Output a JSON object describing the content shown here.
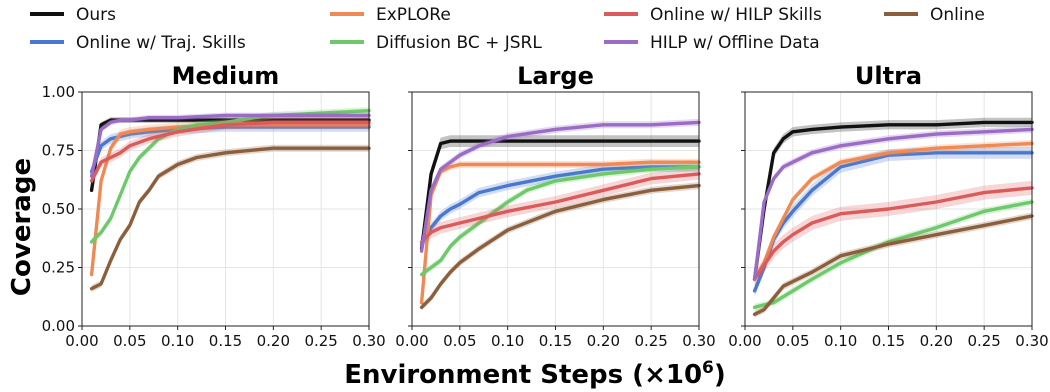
{
  "figure": {
    "xlabel": "Environment Steps (×10",
    "xlabel_sup": "6",
    "xlabel_close": ")",
    "ylabel": "Coverage"
  },
  "legend": [
    {
      "name": "Ours",
      "color": "#111111"
    },
    {
      "name": "Online w/ Traj. Skills",
      "color": "#4a78d0"
    },
    {
      "name": "ExPLORe",
      "color": "#ef8a54"
    },
    {
      "name": "Diffusion BC + JSRL",
      "color": "#6dc96a"
    },
    {
      "name": "Online w/ HILP Skills",
      "color": "#db5a5a"
    },
    {
      "name": "HILP w/ Offline Data",
      "color": "#9a6cc6"
    },
    {
      "name": "Online",
      "color": "#8b5e3c"
    }
  ],
  "chart_data": [
    {
      "type": "line",
      "title": "Medium",
      "xlim": [
        0.0,
        0.3
      ],
      "ylim": [
        0.0,
        1.0
      ],
      "xticks": [
        "0.00",
        "0.05",
        "0.10",
        "0.15",
        "0.20",
        "0.25",
        "0.30"
      ],
      "yticks": [
        "0.00",
        "0.25",
        "0.50",
        "0.75",
        "1.00"
      ],
      "grid": true,
      "series": [
        {
          "name": "Ours",
          "color": "#111111",
          "band": 0.012,
          "x": [
            0.01,
            0.02,
            0.03,
            0.04,
            0.05,
            0.07,
            0.1,
            0.15,
            0.2,
            0.25,
            0.3
          ],
          "y": [
            0.58,
            0.86,
            0.88,
            0.88,
            0.88,
            0.88,
            0.88,
            0.88,
            0.88,
            0.88,
            0.88
          ]
        },
        {
          "name": "Online w/ Traj. Skills",
          "color": "#4a78d0",
          "band": 0.02,
          "x": [
            0.01,
            0.02,
            0.03,
            0.04,
            0.05,
            0.07,
            0.1,
            0.15,
            0.2,
            0.25,
            0.3
          ],
          "y": [
            0.66,
            0.77,
            0.8,
            0.81,
            0.82,
            0.83,
            0.84,
            0.85,
            0.85,
            0.85,
            0.85
          ]
        },
        {
          "name": "ExPLORe",
          "color": "#ef8a54",
          "band": 0.02,
          "x": [
            0.01,
            0.02,
            0.03,
            0.04,
            0.05,
            0.07,
            0.1,
            0.15,
            0.2,
            0.25,
            0.3
          ],
          "y": [
            0.22,
            0.62,
            0.76,
            0.82,
            0.83,
            0.84,
            0.85,
            0.86,
            0.86,
            0.86,
            0.86
          ]
        },
        {
          "name": "Diffusion BC + JSRL",
          "color": "#6dc96a",
          "band": 0.015,
          "x": [
            0.01,
            0.02,
            0.03,
            0.04,
            0.05,
            0.06,
            0.07,
            0.08,
            0.1,
            0.12,
            0.15,
            0.18,
            0.2,
            0.25,
            0.3
          ],
          "y": [
            0.36,
            0.4,
            0.46,
            0.56,
            0.66,
            0.72,
            0.76,
            0.8,
            0.84,
            0.86,
            0.87,
            0.89,
            0.9,
            0.91,
            0.92
          ]
        },
        {
          "name": "Online w/ HILP Skills",
          "color": "#db5a5a",
          "band": 0.02,
          "x": [
            0.01,
            0.02,
            0.03,
            0.04,
            0.05,
            0.07,
            0.1,
            0.15,
            0.2,
            0.25,
            0.3
          ],
          "y": [
            0.62,
            0.7,
            0.72,
            0.74,
            0.77,
            0.8,
            0.83,
            0.86,
            0.87,
            0.87,
            0.87
          ]
        },
        {
          "name": "HILP w/ Offline Data",
          "color": "#9a6cc6",
          "band": 0.012,
          "x": [
            0.01,
            0.02,
            0.03,
            0.04,
            0.05,
            0.07,
            0.1,
            0.15,
            0.2,
            0.25,
            0.3
          ],
          "y": [
            0.64,
            0.84,
            0.87,
            0.88,
            0.88,
            0.89,
            0.89,
            0.9,
            0.9,
            0.9,
            0.9
          ]
        },
        {
          "name": "Online",
          "color": "#8b5e3c",
          "band": 0.015,
          "x": [
            0.01,
            0.02,
            0.03,
            0.04,
            0.05,
            0.06,
            0.07,
            0.08,
            0.1,
            0.12,
            0.15,
            0.2,
            0.25,
            0.3
          ],
          "y": [
            0.16,
            0.18,
            0.28,
            0.37,
            0.43,
            0.53,
            0.58,
            0.64,
            0.69,
            0.72,
            0.74,
            0.76,
            0.76,
            0.76
          ]
        }
      ]
    },
    {
      "type": "line",
      "title": "Large",
      "xlim": [
        0.0,
        0.3
      ],
      "ylim": [
        0.0,
        1.0
      ],
      "xticks": [
        "0.00",
        "0.05",
        "0.10",
        "0.15",
        "0.20",
        "0.25",
        "0.30"
      ],
      "yticks": [
        "0.00",
        "0.25",
        "0.50",
        "0.75",
        "1.00"
      ],
      "grid": true,
      "series": [
        {
          "name": "Ours",
          "color": "#111111",
          "band": 0.025,
          "x": [
            0.01,
            0.02,
            0.03,
            0.04,
            0.05,
            0.07,
            0.1,
            0.15,
            0.2,
            0.25,
            0.3
          ],
          "y": [
            0.33,
            0.65,
            0.78,
            0.79,
            0.79,
            0.79,
            0.79,
            0.79,
            0.79,
            0.79,
            0.79
          ]
        },
        {
          "name": "Online w/ Traj. Skills",
          "color": "#4a78d0",
          "band": 0.02,
          "x": [
            0.01,
            0.02,
            0.03,
            0.04,
            0.05,
            0.07,
            0.1,
            0.15,
            0.2,
            0.25,
            0.3
          ],
          "y": [
            0.35,
            0.42,
            0.47,
            0.5,
            0.52,
            0.57,
            0.6,
            0.64,
            0.67,
            0.68,
            0.68
          ]
        },
        {
          "name": "ExPLORe",
          "color": "#ef8a54",
          "band": 0.015,
          "x": [
            0.01,
            0.02,
            0.03,
            0.04,
            0.05,
            0.07,
            0.1,
            0.15,
            0.2,
            0.25,
            0.3
          ],
          "y": [
            0.1,
            0.56,
            0.66,
            0.68,
            0.69,
            0.69,
            0.69,
            0.69,
            0.69,
            0.7,
            0.7
          ]
        },
        {
          "name": "Diffusion BC + JSRL",
          "color": "#6dc96a",
          "band": 0.015,
          "x": [
            0.01,
            0.02,
            0.03,
            0.04,
            0.05,
            0.07,
            0.1,
            0.12,
            0.15,
            0.2,
            0.25,
            0.3
          ],
          "y": [
            0.22,
            0.25,
            0.28,
            0.34,
            0.38,
            0.44,
            0.53,
            0.58,
            0.62,
            0.65,
            0.67,
            0.68
          ]
        },
        {
          "name": "Online w/ HILP Skills",
          "color": "#db5a5a",
          "band": 0.025,
          "x": [
            0.01,
            0.02,
            0.03,
            0.04,
            0.05,
            0.07,
            0.1,
            0.15,
            0.2,
            0.25,
            0.3
          ],
          "y": [
            0.36,
            0.4,
            0.42,
            0.43,
            0.44,
            0.46,
            0.49,
            0.53,
            0.58,
            0.63,
            0.65
          ]
        },
        {
          "name": "HILP w/ Offline Data",
          "color": "#9a6cc6",
          "band": 0.015,
          "x": [
            0.01,
            0.02,
            0.03,
            0.04,
            0.05,
            0.07,
            0.1,
            0.15,
            0.2,
            0.25,
            0.3
          ],
          "y": [
            0.32,
            0.58,
            0.67,
            0.7,
            0.73,
            0.77,
            0.81,
            0.84,
            0.86,
            0.86,
            0.87
          ]
        },
        {
          "name": "Online",
          "color": "#8b5e3c",
          "band": 0.015,
          "x": [
            0.01,
            0.02,
            0.03,
            0.04,
            0.05,
            0.07,
            0.1,
            0.15,
            0.2,
            0.25,
            0.3
          ],
          "y": [
            0.08,
            0.12,
            0.18,
            0.23,
            0.27,
            0.33,
            0.41,
            0.49,
            0.54,
            0.58,
            0.6
          ]
        }
      ]
    },
    {
      "type": "line",
      "title": "Ultra",
      "xlim": [
        0.0,
        0.3
      ],
      "ylim": [
        0.0,
        1.0
      ],
      "xticks": [
        "0.00",
        "0.05",
        "0.10",
        "0.15",
        "0.20",
        "0.25",
        "0.30"
      ],
      "yticks": [
        "0.00",
        "0.25",
        "0.50",
        "0.75",
        "1.00"
      ],
      "grid": true,
      "series": [
        {
          "name": "Ours",
          "color": "#111111",
          "band": 0.02,
          "x": [
            0.01,
            0.02,
            0.03,
            0.04,
            0.05,
            0.07,
            0.1,
            0.15,
            0.2,
            0.25,
            0.3
          ],
          "y": [
            0.2,
            0.5,
            0.74,
            0.8,
            0.83,
            0.84,
            0.85,
            0.86,
            0.86,
            0.87,
            0.87
          ]
        },
        {
          "name": "Online w/ Traj. Skills",
          "color": "#4a78d0",
          "band": 0.025,
          "x": [
            0.01,
            0.02,
            0.03,
            0.04,
            0.05,
            0.07,
            0.1,
            0.15,
            0.2,
            0.25,
            0.3
          ],
          "y": [
            0.15,
            0.25,
            0.37,
            0.44,
            0.49,
            0.58,
            0.68,
            0.73,
            0.74,
            0.74,
            0.74
          ]
        },
        {
          "name": "ExPLORe",
          "color": "#ef8a54",
          "band": 0.015,
          "x": [
            0.01,
            0.02,
            0.03,
            0.04,
            0.05,
            0.07,
            0.1,
            0.15,
            0.2,
            0.25,
            0.3
          ],
          "y": [
            0.2,
            0.27,
            0.38,
            0.46,
            0.54,
            0.63,
            0.7,
            0.74,
            0.76,
            0.77,
            0.78
          ]
        },
        {
          "name": "Diffusion BC + JSRL",
          "color": "#6dc96a",
          "band": 0.015,
          "x": [
            0.01,
            0.02,
            0.03,
            0.05,
            0.07,
            0.1,
            0.15,
            0.2,
            0.25,
            0.3
          ],
          "y": [
            0.08,
            0.09,
            0.1,
            0.15,
            0.2,
            0.27,
            0.36,
            0.42,
            0.49,
            0.53
          ]
        },
        {
          "name": "Online w/ HILP Skills",
          "color": "#db5a5a",
          "band": 0.03,
          "x": [
            0.01,
            0.02,
            0.03,
            0.04,
            0.05,
            0.07,
            0.1,
            0.15,
            0.2,
            0.25,
            0.3
          ],
          "y": [
            0.2,
            0.26,
            0.32,
            0.36,
            0.39,
            0.44,
            0.48,
            0.5,
            0.53,
            0.57,
            0.59
          ]
        },
        {
          "name": "HILP w/ Offline Data",
          "color": "#9a6cc6",
          "band": 0.015,
          "x": [
            0.01,
            0.02,
            0.03,
            0.04,
            0.05,
            0.07,
            0.1,
            0.15,
            0.2,
            0.25,
            0.3
          ],
          "y": [
            0.2,
            0.53,
            0.63,
            0.68,
            0.7,
            0.74,
            0.77,
            0.8,
            0.82,
            0.83,
            0.84
          ]
        },
        {
          "name": "Online",
          "color": "#8b5e3c",
          "band": 0.015,
          "x": [
            0.01,
            0.02,
            0.03,
            0.04,
            0.05,
            0.07,
            0.1,
            0.15,
            0.2,
            0.25,
            0.3
          ],
          "y": [
            0.05,
            0.07,
            0.12,
            0.17,
            0.19,
            0.23,
            0.3,
            0.35,
            0.39,
            0.43,
            0.47
          ]
        }
      ]
    }
  ]
}
